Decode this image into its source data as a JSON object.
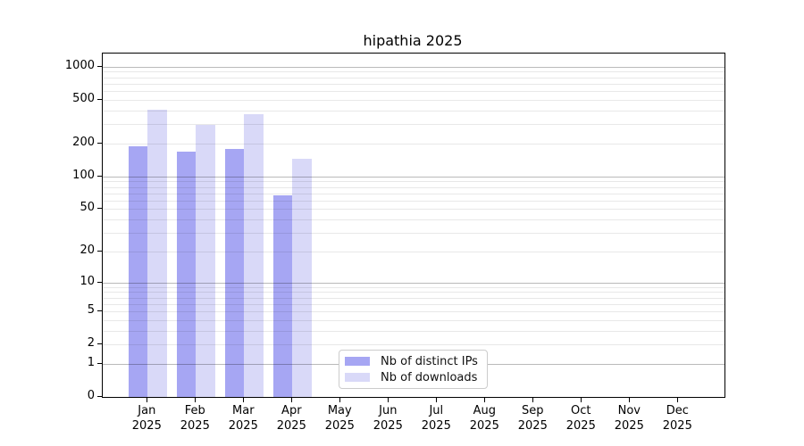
{
  "title": "hipathia 2025",
  "legend": {
    "items": [
      {
        "label": "Nb of distinct IPs",
        "color": "#a6a6f3"
      },
      {
        "label": "Nb of downloads",
        "color": "#d9d9f8"
      }
    ]
  },
  "chart_data": {
    "type": "bar",
    "title": "hipathia 2025",
    "categories": [
      "Jan\n2025",
      "Feb\n2025",
      "Mar\n2025",
      "Apr\n2025",
      "May\n2025",
      "Jun\n2025",
      "Jul\n2025",
      "Aug\n2025",
      "Sep\n2025",
      "Oct\n2025",
      "Nov\n2025",
      "Dec\n2025"
    ],
    "series": [
      {
        "name": "Nb of distinct IPs",
        "color": "#a6a6f3",
        "values": [
          188,
          169,
          177,
          67,
          0,
          0,
          0,
          0,
          0,
          0,
          0,
          0
        ]
      },
      {
        "name": "Nb of downloads",
        "color": "#d9d9f8",
        "values": [
          410,
          295,
          367,
          144,
          0,
          0,
          0,
          0,
          0,
          0,
          0,
          0
        ]
      }
    ],
    "yscale": "log10(value+1)",
    "ylim": [
      0,
      1300
    ],
    "yticks": [
      1000,
      500,
      200,
      100,
      50,
      20,
      10,
      5,
      2,
      1,
      0
    ],
    "grid_major": [
      1000,
      100,
      10,
      1
    ],
    "grid_minor": [
      900,
      800,
      700,
      600,
      500,
      400,
      300,
      200,
      90,
      80,
      70,
      60,
      50,
      40,
      30,
      20,
      9,
      8,
      7,
      6,
      5,
      4,
      3,
      2
    ],
    "grid": "horizontal",
    "legend_position": "inside-bottom-center"
  }
}
